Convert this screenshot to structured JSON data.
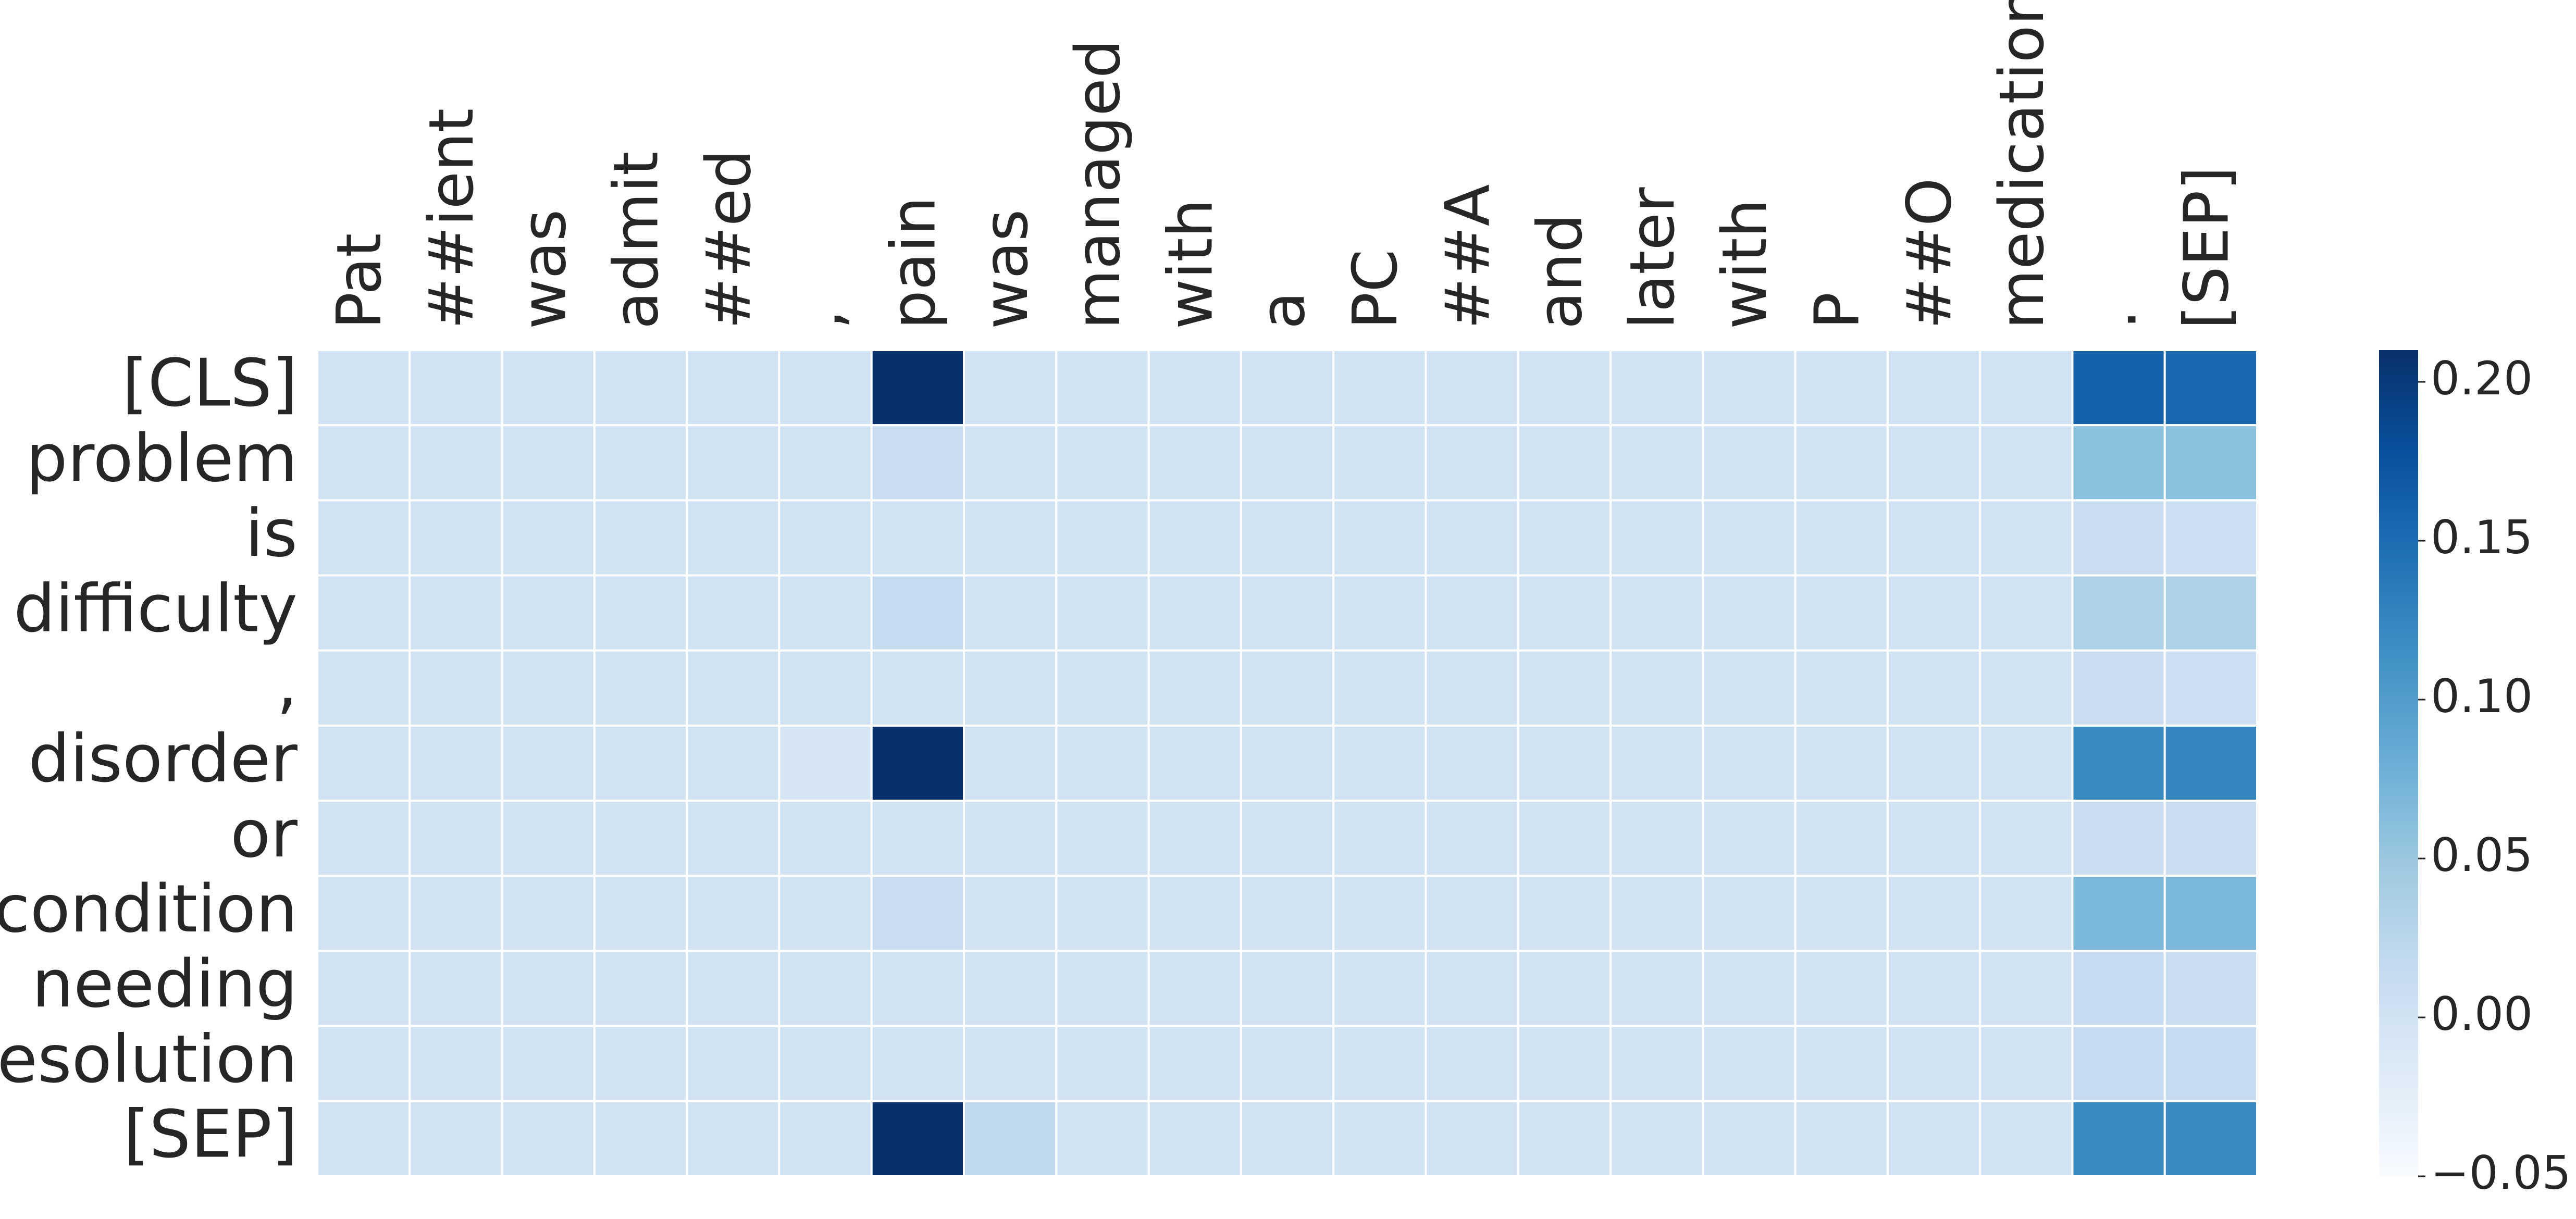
{
  "chart_data": {
    "type": "heatmap",
    "x": [
      "Pat",
      "##ient",
      "was",
      "admit",
      "##ed",
      ",",
      "pain",
      "was",
      "managed",
      "with",
      "a",
      "PC",
      "##A",
      "and",
      "later",
      "with",
      "P",
      "##O",
      "medication",
      ".",
      "[SEP]"
    ],
    "y": [
      "[CLS]",
      "problem",
      "is",
      "difficulty",
      ",",
      "disorder",
      "or",
      "condition",
      "needing",
      "resolution",
      "[SEP]"
    ],
    "values": [
      [
        0,
        0,
        0,
        0,
        0,
        0,
        0.21,
        0,
        0,
        0,
        0,
        0,
        0,
        0,
        0,
        0,
        0,
        0,
        0,
        0.16,
        0.155
      ],
      [
        0,
        0,
        0,
        0,
        0,
        0,
        0.01,
        0,
        0,
        0,
        0,
        0,
        0,
        0,
        0,
        0,
        0,
        0,
        0,
        0.06,
        0.06
      ],
      [
        0,
        0,
        0,
        0,
        0,
        0,
        0,
        0,
        0,
        0,
        0,
        0,
        0,
        0,
        0,
        0,
        0,
        0,
        0,
        0.01,
        0.005
      ],
      [
        0,
        0,
        0,
        0,
        0,
        0,
        0.015,
        0,
        0,
        0,
        0,
        0,
        0,
        0,
        0,
        0,
        0,
        0,
        0,
        0.035,
        0.035
      ],
      [
        0,
        0,
        0,
        0,
        0,
        0,
        0,
        0,
        0,
        0,
        0,
        0,
        0,
        0,
        0,
        0,
        0,
        0,
        0,
        0.01,
        0.005
      ],
      [
        0,
        0,
        0,
        0,
        0,
        -0.005,
        0.21,
        0,
        0,
        0,
        0,
        0,
        0,
        0,
        0,
        0,
        0,
        0,
        0,
        0.12,
        0.125
      ],
      [
        0,
        0,
        0,
        0,
        0,
        0,
        0,
        0,
        0,
        0,
        0,
        0,
        0,
        0,
        0,
        0,
        0,
        0,
        0,
        0.01,
        0.01
      ],
      [
        0,
        0,
        0,
        0,
        0,
        0,
        0.01,
        0,
        0,
        0,
        0,
        0,
        0,
        0,
        0,
        0,
        0,
        0,
        0,
        0.07,
        0.07
      ],
      [
        0,
        0,
        0,
        0,
        0,
        0,
        0,
        0,
        0,
        0,
        0,
        0,
        0,
        0,
        0,
        0,
        0,
        0,
        0,
        0.015,
        0.01
      ],
      [
        0,
        0,
        0,
        0,
        0,
        0,
        0,
        0,
        0,
        0,
        0,
        0,
        0,
        0,
        0,
        0,
        0,
        0,
        0,
        0.015,
        0.015
      ],
      [
        0,
        0,
        0,
        0,
        0,
        0,
        0.21,
        0.02,
        0,
        0,
        0,
        0,
        0,
        0,
        0,
        0,
        0,
        0,
        0,
        0.12,
        0.12
      ]
    ],
    "colormap": "Blues",
    "clim": [
      -0.05,
      0.21
    ],
    "cticks": [
      {
        "value": -0.05,
        "label": "−0.05"
      },
      {
        "value": 0,
        "label": "0.00"
      },
      {
        "value": 0.05,
        "label": "0.05"
      },
      {
        "value": 0.1,
        "label": "0.10"
      },
      {
        "value": 0.15,
        "label": "0.15"
      },
      {
        "value": 0.2,
        "label": "0.20"
      }
    ]
  }
}
